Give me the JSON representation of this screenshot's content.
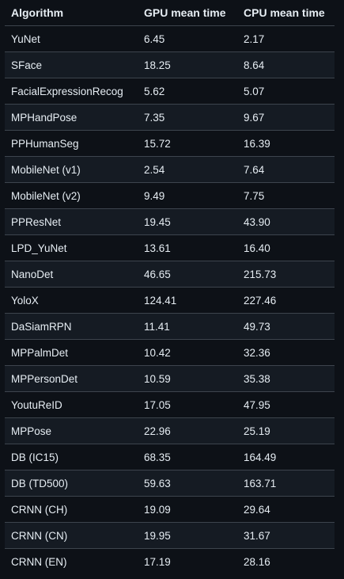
{
  "table": {
    "headers": [
      "Algorithm",
      "GPU mean time",
      "CPU mean time"
    ],
    "rows": [
      [
        "YuNet",
        "6.45",
        "2.17"
      ],
      [
        "SFace",
        "18.25",
        "8.64"
      ],
      [
        "FacialExpressionRecog",
        "5.62",
        "5.07"
      ],
      [
        "MPHandPose",
        "7.35",
        "9.67"
      ],
      [
        "PPHumanSeg",
        "15.72",
        "16.39"
      ],
      [
        "MobileNet (v1)",
        "2.54",
        "7.64"
      ],
      [
        "MobileNet (v2)",
        "9.49",
        "7.75"
      ],
      [
        "PPResNet",
        "19.45",
        "43.90"
      ],
      [
        "LPD_YuNet",
        "13.61",
        "16.40"
      ],
      [
        "NanoDet",
        "46.65",
        "215.73"
      ],
      [
        "YoloX",
        "124.41",
        "227.46"
      ],
      [
        "DaSiamRPN",
        "11.41",
        "49.73"
      ],
      [
        "MPPalmDet",
        "10.42",
        "32.36"
      ],
      [
        "MPPersonDet",
        "10.59",
        "35.38"
      ],
      [
        "YoutuReID",
        "17.05",
        "47.95"
      ],
      [
        "MPPose",
        "22.96",
        "25.19"
      ],
      [
        "DB (IC15)",
        "68.35",
        "164.49"
      ],
      [
        "DB (TD500)",
        "59.63",
        "163.71"
      ],
      [
        "CRNN (CH)",
        "19.09",
        "29.64"
      ],
      [
        "CRNN (CN)",
        "19.95",
        "31.67"
      ],
      [
        "CRNN (EN)",
        "17.19",
        "28.16"
      ]
    ]
  },
  "colors": {
    "background": "#0d1117",
    "row_alt": "#151b23",
    "border": "#3d444d",
    "text": "#e6edf3"
  }
}
